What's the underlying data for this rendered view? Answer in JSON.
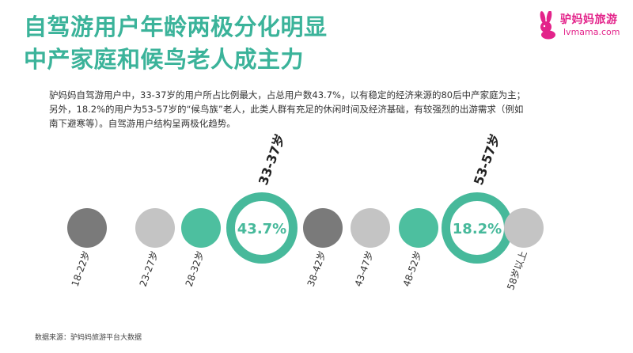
{
  "title": {
    "line1": "自驾游用户年龄两极分化明显",
    "line2": "中产家庭和候鸟老人成主力"
  },
  "logo": {
    "name_cn": "驴妈妈旅游",
    "name_en": "lvmama.com",
    "icon": "rabbit-logo-icon",
    "color": "#e3238a"
  },
  "description": {
    "lines": [
      "驴妈妈自驾游用户中，33-37岁的用户所占比例最大，占总用户数43.7%，以有稳定的经济来源的80后中产家庭为主；",
      "另外，18.2%的用户为53-57岁的“候鸟族”老人，此类人群有充足的休闲时间及经济基础，有较强烈的出游需求（例如",
      "南下避寒等）。自驾游用户结构呈两极化趋势。"
    ]
  },
  "colors": {
    "title": "#3bb39a",
    "dark_gray": "#7a7a7a",
    "light_gray": "#c4c4c4",
    "teal": "#4dbf9f",
    "highlight_ring": "#47b99b"
  },
  "chart_data": {
    "type": "bubble",
    "categories": [
      "18-22岁",
      "23-27岁",
      "28-32岁",
      "33-37岁",
      "38-42岁",
      "43-47岁",
      "48-52岁",
      "53-57岁",
      "58岁以上"
    ],
    "values": [
      null,
      null,
      null,
      43.7,
      null,
      null,
      null,
      18.2,
      null
    ],
    "value_labels": [
      "",
      "",
      "",
      "43.7%",
      "",
      "",
      "",
      "18.2%",
      ""
    ],
    "highlight_labels": [
      "",
      "",
      "",
      "33-37岁",
      "",
      "",
      "",
      "53-57岁",
      ""
    ],
    "fill_colors": [
      "#7a7a7a",
      "#c4c4c4",
      "#4dbf9f",
      "#47b99b",
      "#7a7a7a",
      "#c4c4c4",
      "#4dbf9f",
      "#47b99b",
      "#c4c4c4"
    ],
    "highlighted": [
      false,
      false,
      false,
      true,
      false,
      false,
      false,
      true,
      false
    ]
  },
  "source": "数据来源：驴妈妈旅游平台大数据"
}
